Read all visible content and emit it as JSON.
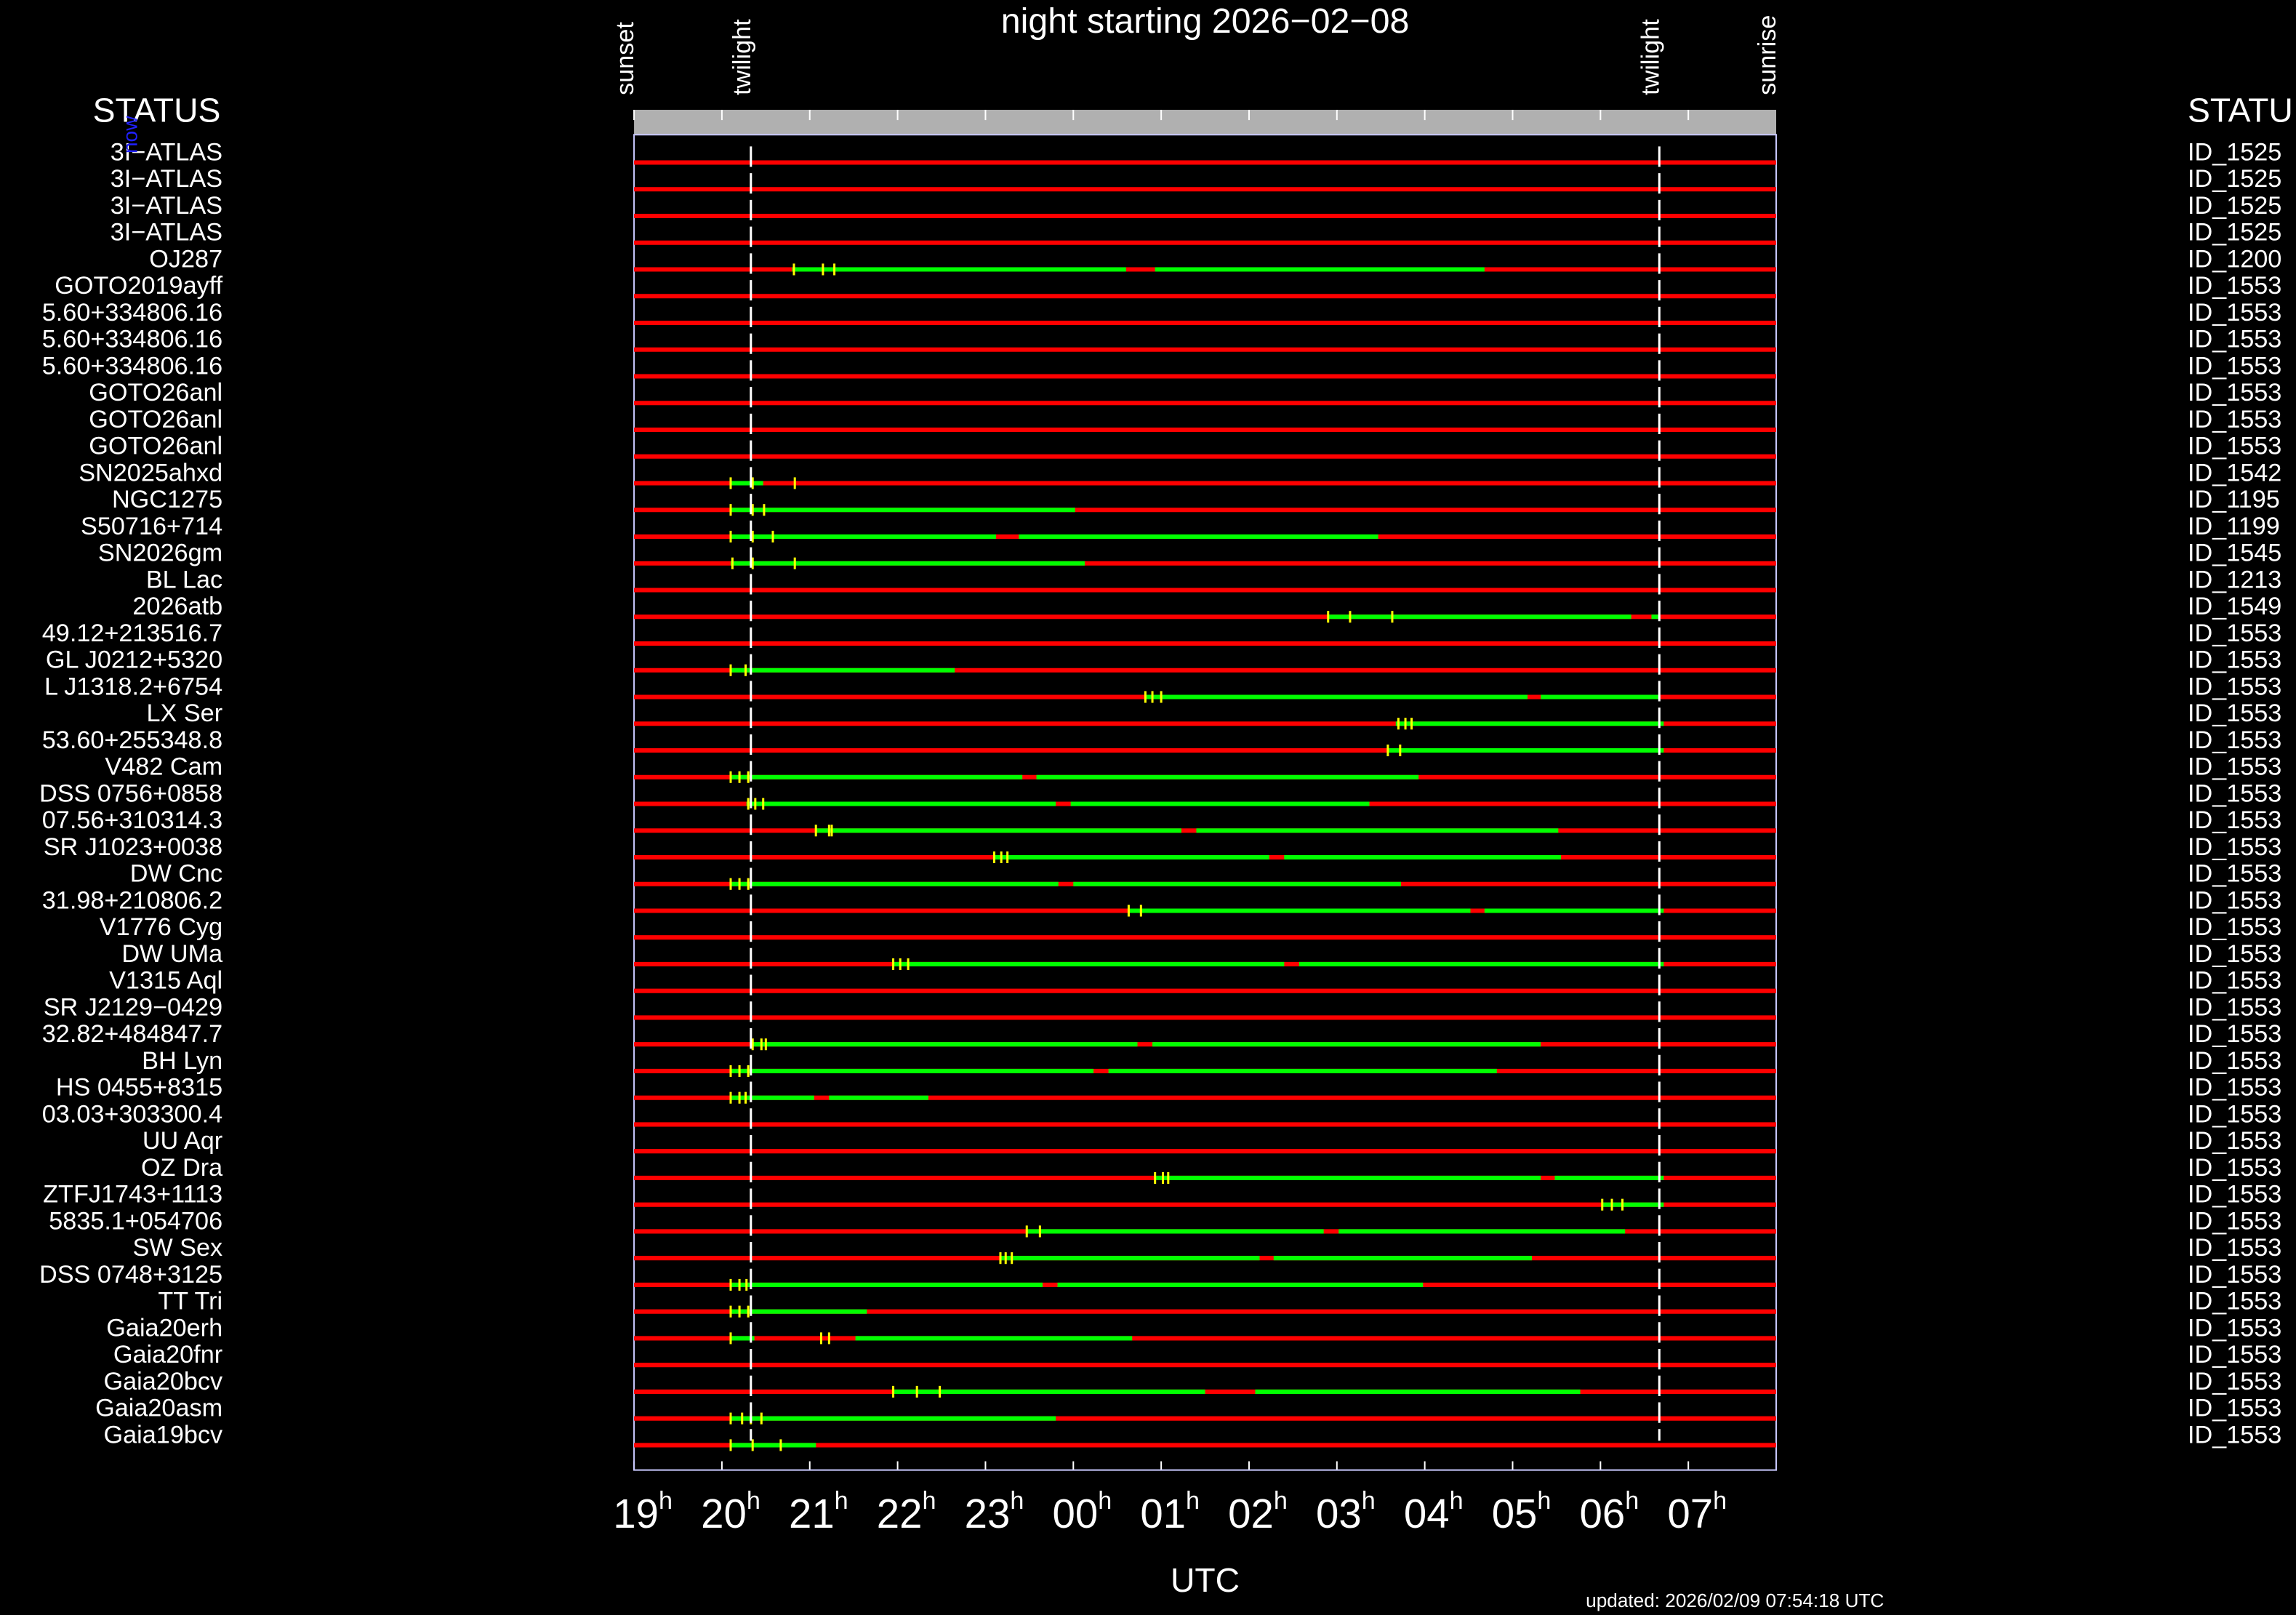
{
  "chart_data": {
    "type": "timeline",
    "title": "night starting 2026−02−08",
    "x_label": "UTC",
    "updated": "updated: 2026/02/09 07:54:18 UTC",
    "left_header": "STATUS",
    "right_header": "STATU",
    "now_label": "now",
    "xlim": [
      19,
      32
    ],
    "xticks": [
      19,
      20,
      21,
      22,
      23,
      {
        "value": 24,
        "label": "00"
      },
      {
        "value": 25,
        "label": "01"
      },
      {
        "value": 26,
        "label": "02"
      },
      {
        "value": 27,
        "label": "03"
      },
      {
        "value": 28,
        "label": "04"
      },
      {
        "value": 29,
        "label": "05"
      },
      {
        "value": 30,
        "label": "06"
      },
      {
        "value": 31,
        "label": "07"
      }
    ],
    "x_tick_unit": "h",
    "events": [
      {
        "label": "sunset",
        "value": 19
      },
      {
        "label": "twilight",
        "value": 20.33
      },
      {
        "label": "twilight",
        "value": 30.67
      },
      {
        "label": "sunrise",
        "value": 32
      }
    ],
    "colors": {
      "night": "#ff0000",
      "visible": "#00ff00",
      "marker": "#ffff00",
      "header_bar": "#b0b0b0",
      "now": "#2020ff"
    },
    "rows": [
      {
        "name": "3I−ATLAS",
        "id": "ID_1525",
        "visible": [],
        "markers": []
      },
      {
        "name": "3I−ATLAS",
        "id": "ID_1525",
        "visible": [],
        "markers": []
      },
      {
        "name": "3I−ATLAS",
        "id": "ID_1525",
        "visible": [],
        "markers": []
      },
      {
        "name": "3I−ATLAS",
        "id": "ID_1525",
        "visible": [],
        "markers": []
      },
      {
        "name": "OJ287",
        "id": "ID_1200",
        "visible": [
          [
            20.8,
            24.6
          ],
          [
            24.93,
            28.68
          ]
        ],
        "markers": [
          20.82,
          21.15,
          21.28
        ]
      },
      {
        "name": "GOTO2019ayff",
        "id": "ID_1553",
        "visible": [],
        "markers": []
      },
      {
        "name": "5.60+334806.16",
        "id": "ID_1553",
        "visible": [],
        "markers": []
      },
      {
        "name": "5.60+334806.16",
        "id": "ID_1553",
        "visible": [],
        "markers": []
      },
      {
        "name": "5.60+334806.16",
        "id": "ID_1553",
        "visible": [],
        "markers": []
      },
      {
        "name": "GOTO26anl",
        "id": "ID_1553",
        "visible": [],
        "markers": []
      },
      {
        "name": "GOTO26anl",
        "id": "ID_1553",
        "visible": [],
        "markers": []
      },
      {
        "name": "GOTO26anl",
        "id": "ID_1553",
        "visible": [],
        "markers": []
      },
      {
        "name": "SN2025ahxd",
        "id": "ID_1542",
        "visible": [
          [
            20.1,
            20.47
          ]
        ],
        "markers": [
          20.1,
          20.35,
          20.83
        ]
      },
      {
        "name": "NGC1275",
        "id": "ID_1195",
        "visible": [
          [
            20.1,
            24.02
          ]
        ],
        "markers": [
          20.1,
          20.35,
          20.48
        ]
      },
      {
        "name": "S50716+714",
        "id": "ID_1199",
        "visible": [
          [
            20.1,
            23.12
          ],
          [
            23.38,
            27.47
          ]
        ],
        "markers": [
          20.1,
          20.35,
          20.58
        ]
      },
      {
        "name": "SN2026gm",
        "id": "ID_1545",
        "visible": [
          [
            20.1,
            24.13
          ]
        ],
        "markers": [
          20.12,
          20.35,
          20.83
        ]
      },
      {
        "name": "BL Lac",
        "id": "ID_1213",
        "visible": [],
        "markers": []
      },
      {
        "name": "2026atb",
        "id": "ID_1549",
        "visible": [
          [
            26.9,
            30.35
          ],
          [
            30.58,
            30.67
          ]
        ],
        "markers": [
          26.9,
          27.15,
          27.63
        ]
      },
      {
        "name": "49.12+213516.7",
        "id": "ID_1553",
        "visible": [],
        "markers": []
      },
      {
        "name": "GL J0212+5320",
        "id": "ID_1553",
        "visible": [
          [
            20.1,
            22.65
          ]
        ],
        "markers": [
          20.1,
          20.27
        ]
      },
      {
        "name": "L J1318.2+6754",
        "id": "ID_1553",
        "visible": [
          [
            24.82,
            29.17
          ],
          [
            29.32,
            30.68
          ]
        ],
        "markers": [
          24.82,
          24.9,
          25.0
        ]
      },
      {
        "name": "LX Ser",
        "id": "ID_1553",
        "visible": [
          [
            27.67,
            30.72
          ]
        ],
        "markers": [
          27.7,
          27.78,
          27.85
        ]
      },
      {
        "name": "53.60+255348.8",
        "id": "ID_1553",
        "visible": [
          [
            27.58,
            30.72
          ]
        ],
        "markers": [
          27.58,
          27.72
        ]
      },
      {
        "name": "V482 Cam",
        "id": "ID_1553",
        "visible": [
          [
            20.1,
            23.42
          ],
          [
            23.58,
            27.93
          ]
        ],
        "markers": [
          20.1,
          20.2,
          20.3
        ]
      },
      {
        "name": "DSS 0756+0858",
        "id": "ID_1553",
        "visible": [
          [
            20.28,
            23.8
          ],
          [
            23.97,
            27.37
          ]
        ],
        "markers": [
          20.3,
          20.38,
          20.47
        ]
      },
      {
        "name": "07.56+310314.3",
        "id": "ID_1553",
        "visible": [
          [
            21.07,
            25.23
          ],
          [
            25.4,
            29.52
          ]
        ],
        "markers": [
          21.07,
          21.22,
          21.25
        ]
      },
      {
        "name": "SR J1023+0038",
        "id": "ID_1553",
        "visible": [
          [
            23.1,
            26.23
          ],
          [
            26.4,
            29.55
          ]
        ],
        "markers": [
          23.1,
          23.18,
          23.25
        ]
      },
      {
        "name": "DW Cnc",
        "id": "ID_1553",
        "visible": [
          [
            20.1,
            23.83
          ],
          [
            24.0,
            27.73
          ]
        ],
        "markers": [
          20.1,
          20.2,
          20.3
        ]
      },
      {
        "name": "31.98+210806.2",
        "id": "ID_1553",
        "visible": [
          [
            24.63,
            28.52
          ],
          [
            28.68,
            30.72
          ]
        ],
        "markers": [
          24.63,
          24.77
        ]
      },
      {
        "name": "V1776 Cyg",
        "id": "ID_1553",
        "visible": [],
        "markers": []
      },
      {
        "name": "DW UMa",
        "id": "ID_1553",
        "visible": [
          [
            21.95,
            26.4
          ],
          [
            26.57,
            30.72
          ]
        ],
        "markers": [
          21.95,
          22.03,
          22.12
        ]
      },
      {
        "name": "V1315 Aql",
        "id": "ID_1553",
        "visible": [],
        "markers": []
      },
      {
        "name": "SR J2129−0429",
        "id": "ID_1553",
        "visible": [],
        "markers": []
      },
      {
        "name": "32.82+484847.7",
        "id": "ID_1553",
        "visible": [
          [
            20.33,
            24.73
          ],
          [
            24.9,
            29.32
          ]
        ],
        "markers": [
          20.35,
          20.45,
          20.5
        ]
      },
      {
        "name": "BH Lyn",
        "id": "ID_1553",
        "visible": [
          [
            20.1,
            24.23
          ],
          [
            24.4,
            28.82
          ]
        ],
        "markers": [
          20.1,
          20.2,
          20.3
        ]
      },
      {
        "name": "HS 0455+8315",
        "id": "ID_1553",
        "visible": [
          [
            20.1,
            21.05
          ],
          [
            21.22,
            22.35
          ]
        ],
        "markers": [
          20.1,
          20.2,
          20.27
        ]
      },
      {
        "name": "03.03+303300.4",
        "id": "ID_1553",
        "visible": [],
        "markers": []
      },
      {
        "name": "UU Aqr",
        "id": "ID_1553",
        "visible": [],
        "markers": []
      },
      {
        "name": "OZ Dra",
        "id": "ID_1553",
        "visible": [
          [
            24.93,
            29.32
          ],
          [
            29.48,
            30.72
          ]
        ],
        "markers": [
          24.93,
          25.02,
          25.08
        ]
      },
      {
        "name": "ZTFJ1743+1113",
        "id": "ID_1553",
        "visible": [
          [
            30.02,
            30.72
          ]
        ],
        "markers": [
          30.02,
          30.13,
          30.25
        ]
      },
      {
        "name": "5835.1+054706",
        "id": "ID_1553",
        "visible": [
          [
            23.47,
            26.85
          ],
          [
            27.02,
            30.28
          ]
        ],
        "markers": [
          23.47,
          23.62
        ]
      },
      {
        "name": "SW Sex",
        "id": "ID_1553",
        "visible": [
          [
            23.17,
            26.12
          ],
          [
            26.28,
            29.22
          ]
        ],
        "markers": [
          23.17,
          23.23,
          23.3
        ]
      },
      {
        "name": "DSS 0748+3125",
        "id": "ID_1553",
        "visible": [
          [
            20.1,
            23.65
          ],
          [
            23.82,
            27.98
          ]
        ],
        "markers": [
          20.1,
          20.2,
          20.28
        ]
      },
      {
        "name": "TT Tri",
        "id": "ID_1553",
        "visible": [
          [
            20.1,
            21.65
          ]
        ],
        "markers": [
          20.1,
          20.2,
          20.3
        ]
      },
      {
        "name": "Gaia20erh",
        "id": "ID_1553",
        "visible": [
          [
            20.1,
            20.37
          ],
          [
            21.52,
            24.67
          ]
        ],
        "markers": [
          20.1,
          21.13,
          21.22
        ]
      },
      {
        "name": "Gaia20fnr",
        "id": "ID_1553",
        "visible": [],
        "markers": []
      },
      {
        "name": "Gaia20bcv",
        "id": "ID_1553",
        "visible": [
          [
            21.95,
            25.5
          ],
          [
            26.07,
            29.77
          ]
        ],
        "markers": [
          21.95,
          22.22,
          22.48
        ]
      },
      {
        "name": "Gaia20asm",
        "id": "ID_1553",
        "visible": [
          [
            20.1,
            23.8
          ]
        ],
        "markers": [
          20.1,
          20.23,
          20.33,
          20.45
        ]
      },
      {
        "name": "Gaia19bcv",
        "id": "ID_1553",
        "visible": [
          [
            20.1,
            21.07
          ]
        ],
        "markers": [
          20.1,
          20.35,
          20.67
        ]
      }
    ]
  }
}
